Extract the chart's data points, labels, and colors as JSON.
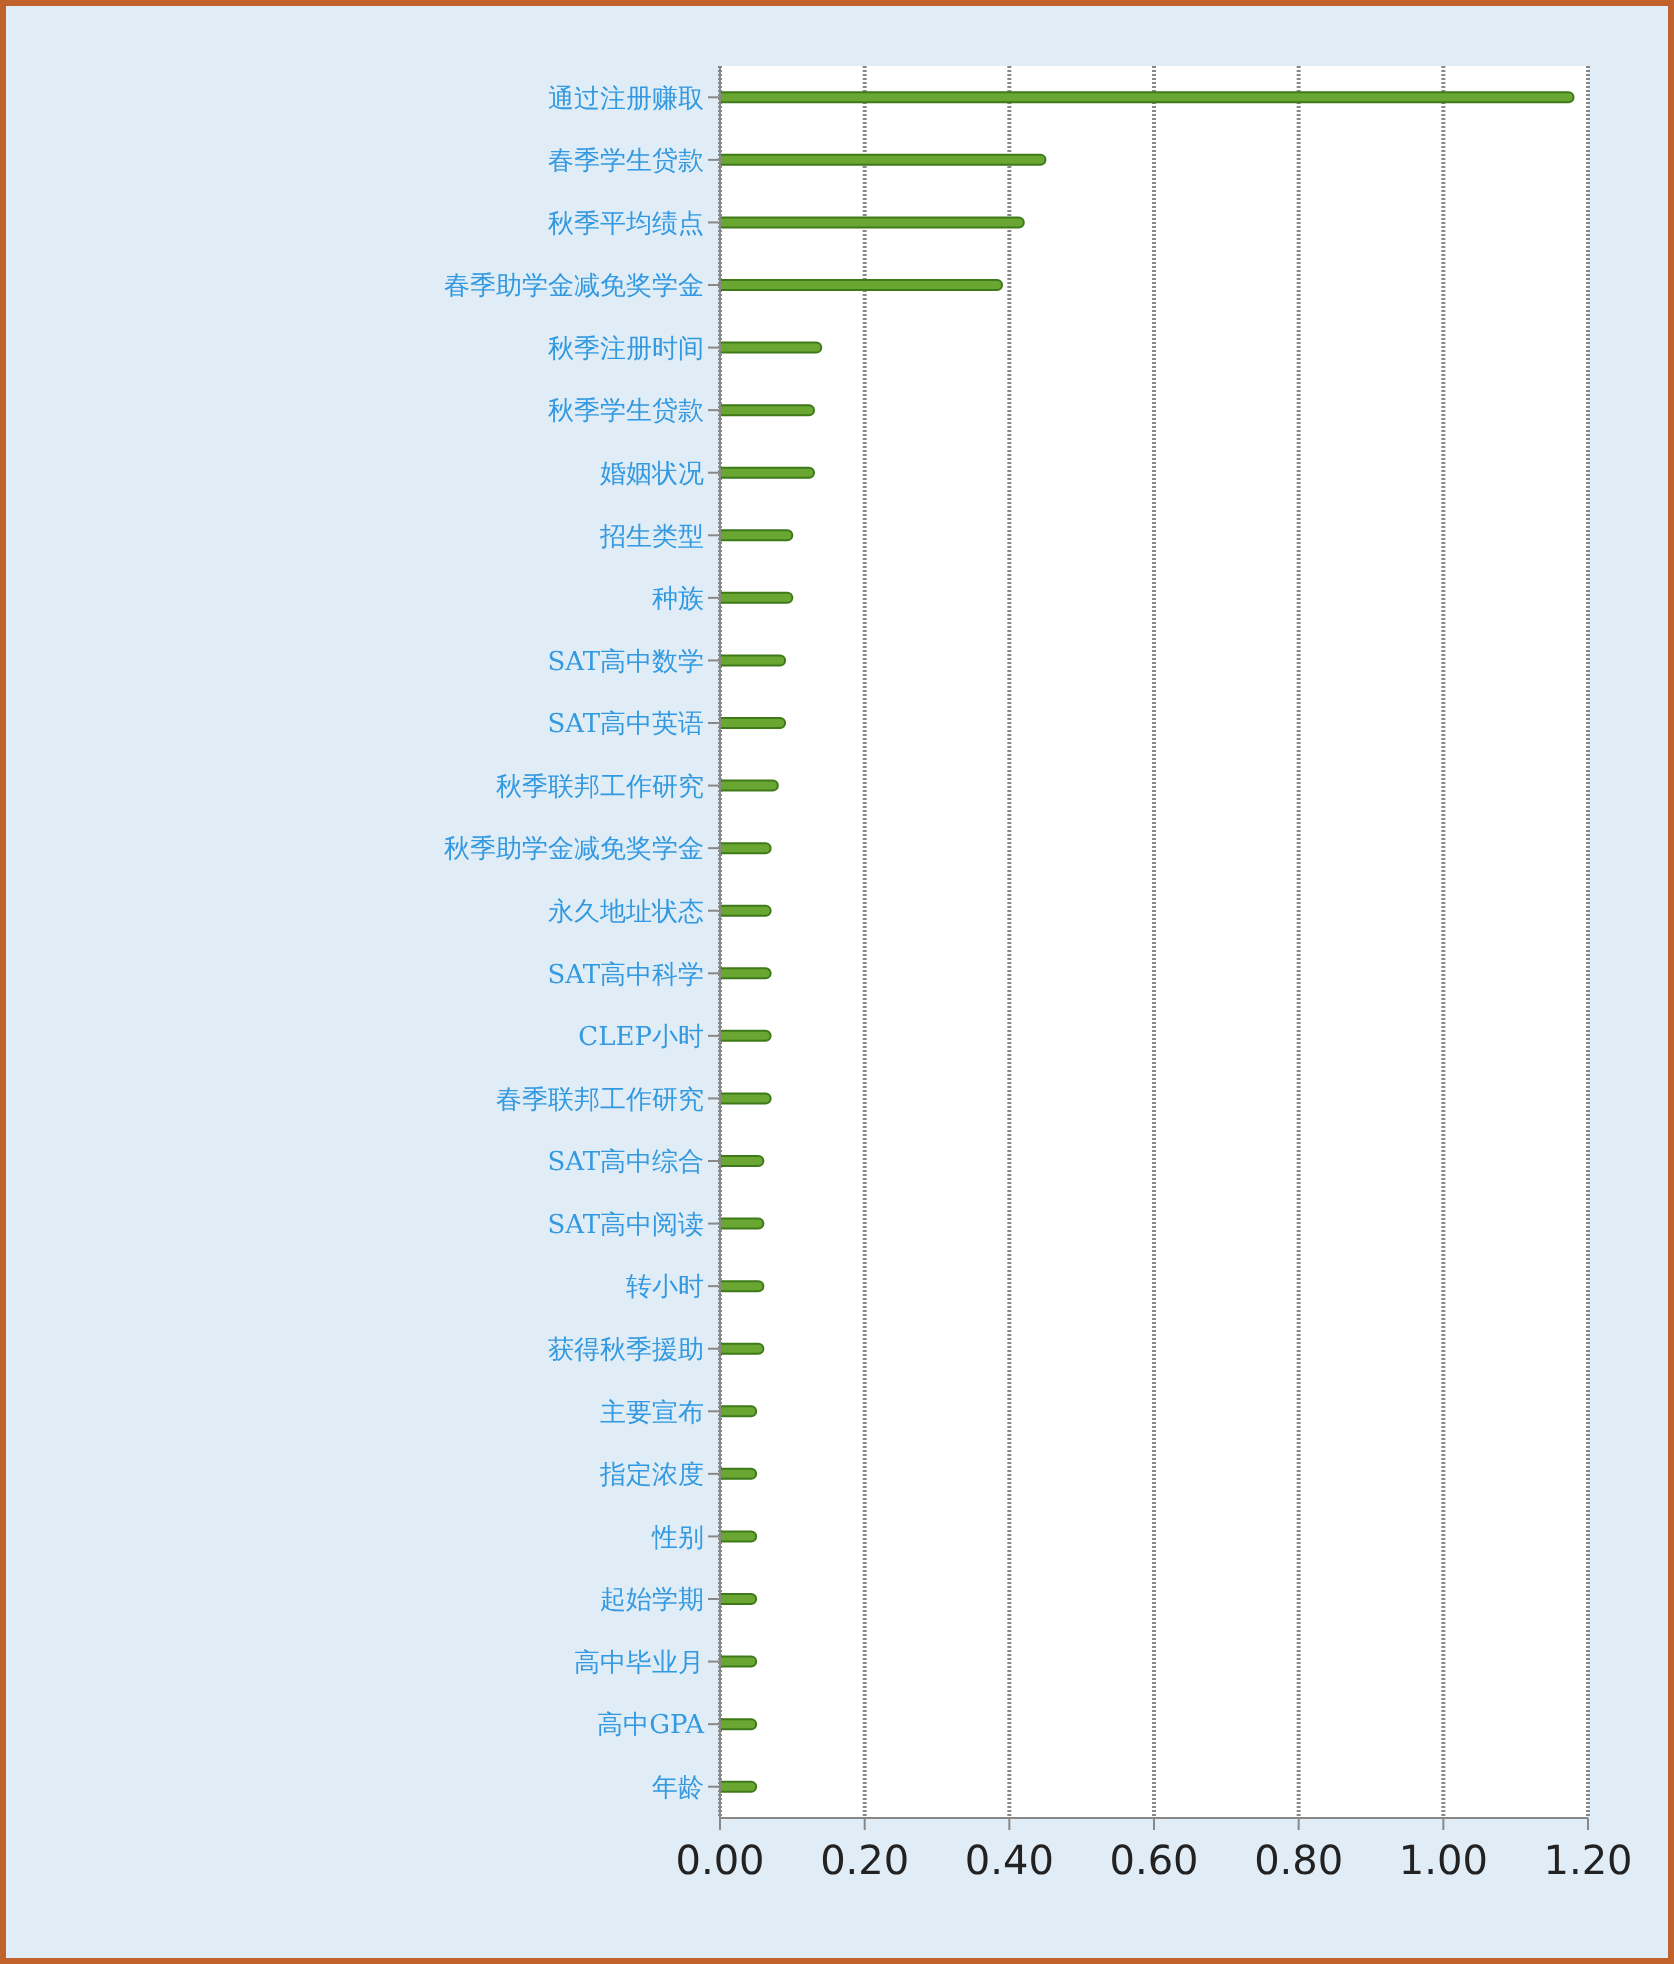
{
  "chart_data": {
    "type": "bar",
    "orientation": "horizontal",
    "categories": [
      "通过注册赚取",
      "春季学生贷款",
      "秋季平均绩点",
      "春季助学金减免奖学金",
      "秋季注册时间",
      "秋季学生贷款",
      "婚姻状况",
      "招生类型",
      "种族",
      "SAT高中数学",
      "SAT高中英语",
      "秋季联邦工作研究",
      "秋季助学金减免奖学金",
      "永久地址状态",
      "SAT高中科学",
      "CLEP小时",
      "春季联邦工作研究",
      "SAT高中综合",
      "SAT高中阅读",
      "转小时",
      "获得秋季援助",
      "主要宣布",
      "指定浓度",
      "性别",
      "起始学期",
      "高中毕业月",
      "高中GPA",
      "年龄"
    ],
    "values": [
      1.18,
      0.45,
      0.42,
      0.39,
      0.14,
      0.13,
      0.13,
      0.1,
      0.1,
      0.09,
      0.09,
      0.08,
      0.07,
      0.07,
      0.07,
      0.07,
      0.07,
      0.06,
      0.06,
      0.06,
      0.06,
      0.05,
      0.05,
      0.05,
      0.05,
      0.05,
      0.05,
      0.05
    ],
    "color": "#6aa632",
    "xlim": [
      0,
      1.2
    ],
    "xticks": [
      {
        "value": 0,
        "label": "0.00"
      },
      {
        "value": 0.2,
        "label": "0.20"
      },
      {
        "value": 0.4,
        "label": "0.40"
      },
      {
        "value": 0.6,
        "label": "0.60"
      },
      {
        "value": 0.8,
        "label": "0.80"
      },
      {
        "value": 1,
        "label": "1.00"
      },
      {
        "value": 1.2,
        "label": "1.20"
      }
    ],
    "grid": "x",
    "legend": false
  }
}
